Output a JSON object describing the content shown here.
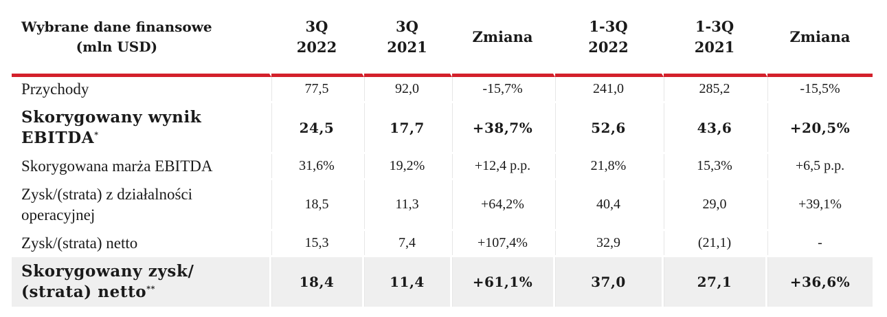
{
  "header": {
    "label_line1": "Wybrane dane finansowe",
    "label_line2": "(mln USD)",
    "columns": [
      {
        "line1": "3Q",
        "line2": "2022"
      },
      {
        "line1": "3Q",
        "line2": "2021"
      },
      {
        "line1": "Zmiana",
        "line2": ""
      },
      {
        "line1": "1-3Q",
        "line2": "2022"
      },
      {
        "line1": "1-3Q",
        "line2": "2021"
      },
      {
        "line1": "Zmiana",
        "line2": ""
      }
    ]
  },
  "rows": [
    {
      "label_line1": "Przychody",
      "label_line2": "",
      "sup": "",
      "bold": false,
      "values": [
        "77,5",
        "92,0",
        "-15,7%",
        "241,0",
        "285,2",
        "-15,5%"
      ]
    },
    {
      "label_line1": "Skorygowany wynik",
      "label_line2": "EBITDA",
      "sup": "*",
      "bold": true,
      "values": [
        "24,5",
        "17,7",
        "+38,7%",
        "52,6",
        "43,6",
        "+20,5%"
      ]
    },
    {
      "label_line1": "Skorygowana marża EBITDA",
      "label_line2": "",
      "sup": "",
      "bold": false,
      "values": [
        "31,6%",
        "19,2%",
        "+12,4 p.p.",
        "21,8%",
        "15,3%",
        "+6,5 p.p."
      ]
    },
    {
      "label_line1": "Zysk/(strata) z działalności",
      "label_line2": "operacyjnej",
      "sup": "",
      "bold": false,
      "values": [
        "18,5",
        "11,3",
        "+64,2%",
        "40,4",
        "29,0",
        "+39,1%"
      ]
    },
    {
      "label_line1": "Zysk/(strata) netto",
      "label_line2": "",
      "sup": "",
      "bold": false,
      "values": [
        "15,3",
        "7,4",
        "+107,4%",
        "32,9",
        "(21,1)",
        "-"
      ]
    },
    {
      "label_line1": "Skorygowany zysk/",
      "label_line2": "(strata) netto",
      "sup": "**",
      "bold": true,
      "values": [
        "18,4",
        "11,4",
        "+61,1%",
        "37,0",
        "27,1",
        "+36,6%"
      ]
    }
  ],
  "colors": {
    "header_rule": "#d3202b",
    "shaded_row": "#efefef"
  }
}
